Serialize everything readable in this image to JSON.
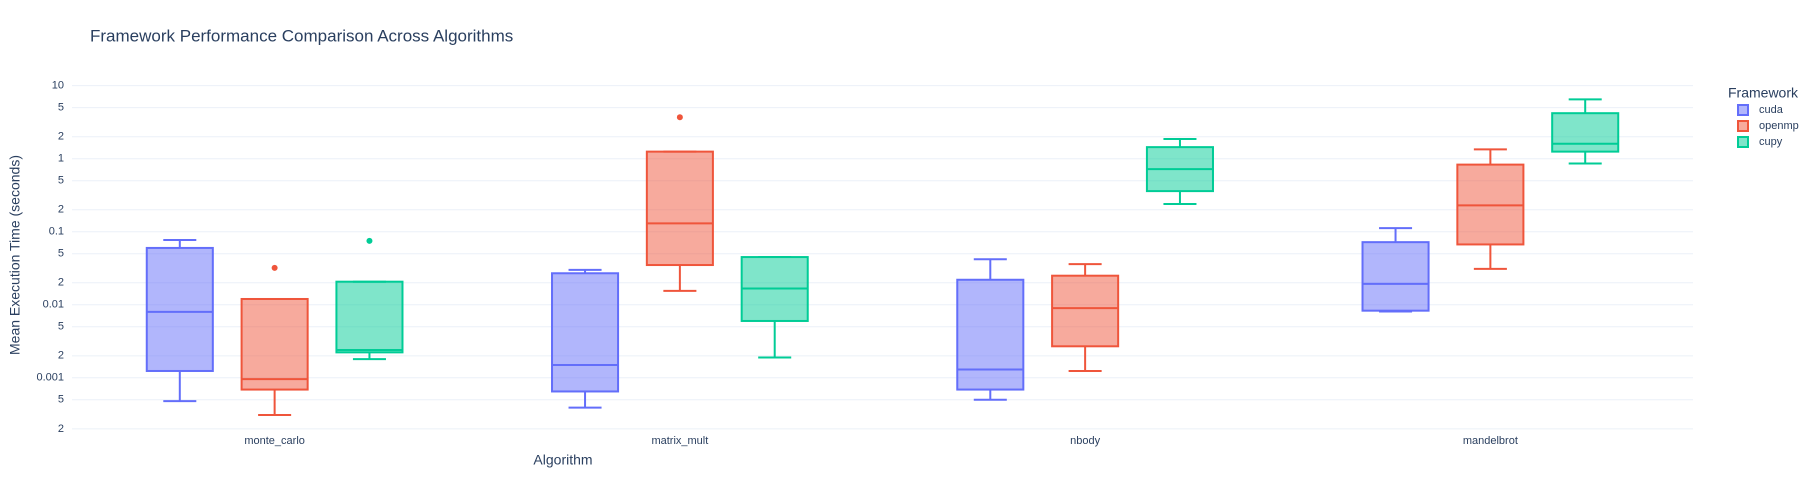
{
  "chart_data": {
    "type": "box",
    "title": "Framework Performance Comparison Across Algorithms",
    "xlabel": "Algorithm",
    "ylabel": "Mean Execution Time (seconds)",
    "yscale": "log",
    "grid": true,
    "legend_title": "Framework",
    "legend_position": "right",
    "categories": [
      "monte_carlo",
      "matrix_mult",
      "nbody",
      "mandelbrot"
    ],
    "ylim": [
      0.00017,
      14
    ],
    "yticks": [
      {
        "value": 0.0002,
        "label": "2"
      },
      {
        "value": 0.0005,
        "label": "5"
      },
      0.001,
      {
        "value": 0.002,
        "label": "2"
      },
      {
        "value": 0.005,
        "label": "5"
      },
      0.01,
      {
        "value": 0.02,
        "label": "2"
      },
      {
        "value": 0.05,
        "label": "5"
      },
      0.1,
      {
        "value": 0.2,
        "label": "2"
      },
      {
        "value": 0.5,
        "label": "5"
      },
      1,
      2,
      5,
      10
    ],
    "series": [
      {
        "name": "cuda",
        "color": "#636efa",
        "min": [
          0.00048,
          0.00039,
          0.0005,
          0.0081
        ],
        "q1": [
          0.00124,
          0.00065,
          0.00069,
          0.0083
        ],
        "median": [
          0.008,
          0.0015,
          0.0013,
          0.0193
        ],
        "q3": [
          0.06,
          0.027,
          0.022,
          0.072
        ],
        "max": [
          0.077,
          0.03,
          0.042,
          0.112
        ],
        "outliers": [
          [],
          [],
          [],
          []
        ]
      },
      {
        "name": "openmp",
        "color": "#EF553B",
        "min": [
          0.00031,
          0.0155,
          0.00124,
          0.031
        ],
        "q1": [
          0.00069,
          0.035,
          0.0027,
          0.067
        ],
        "median": [
          0.00096,
          0.13,
          0.009,
          0.23
        ],
        "q3": [
          0.012,
          1.25,
          0.025,
          0.83
        ],
        "max": [
          0.012,
          1.25,
          0.036,
          1.34
        ],
        "outliers": [
          [
            0.032
          ],
          [
            3.7
          ],
          [],
          []
        ]
      },
      {
        "name": "cupy",
        "color": "#00cc96",
        "min": [
          0.0018,
          0.0019,
          0.24,
          0.86
        ],
        "q1": [
          0.00223,
          0.006,
          0.36,
          1.25
        ],
        "median": [
          0.0024,
          0.0167,
          0.72,
          1.6
        ],
        "q3": [
          0.0207,
          0.045,
          1.44,
          4.2
        ],
        "max": [
          0.0207,
          0.045,
          1.86,
          6.5
        ],
        "outliers": [
          [
            0.075
          ],
          [],
          [],
          []
        ]
      }
    ]
  }
}
